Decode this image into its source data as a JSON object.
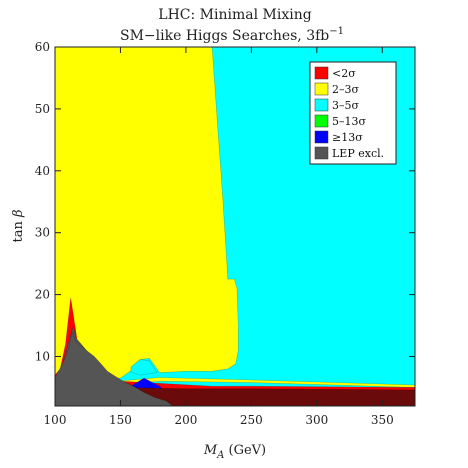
{
  "chart_data": {
    "type": "heatmap",
    "title_line1": "LHC: Minimal Mixing",
    "title_line2_main": "SM−like Higgs Searches, 3fb",
    "title_line2_sup": "−1",
    "xlabel_main": "M",
    "xlabel_sub": "A",
    "xlabel_unit": " (GeV)",
    "ylabel_main": "tan ",
    "ylabel_sym": "β",
    "xlim": [
      100,
      375
    ],
    "ylim": [
      2,
      60
    ],
    "x_ticks": [
      100,
      150,
      200,
      250,
      300,
      350
    ],
    "y_ticks": [
      10,
      20,
      30,
      40,
      50,
      60
    ],
    "legend_position": "top-right",
    "legend": [
      {
        "label": "<2σ",
        "color": "#ff0000"
      },
      {
        "label": "2–3σ",
        "color": "#ffff00"
      },
      {
        "label": "3–5σ",
        "color": "#00ffff"
      },
      {
        "label": "5–13σ",
        "color": "#00ff00"
      },
      {
        "label": "≥13σ",
        "color": "#0000ff"
      },
      {
        "label": "LEP excl.",
        "color": "#555555"
      }
    ],
    "regions": [
      {
        "name": "3-5 sigma",
        "color": "#00ffff",
        "polygon": [
          [
            100,
            2
          ],
          [
            375,
            2
          ],
          [
            375,
            60
          ],
          [
            100,
            60
          ]
        ]
      },
      {
        "name": "2-3 sigma",
        "color": "#ffff00",
        "polygon": [
          [
            100,
            60
          ],
          [
            220,
            60
          ],
          [
            224,
            48
          ],
          [
            228,
            36
          ],
          [
            231,
            26
          ],
          [
            232,
            22.5
          ],
          [
            237,
            22.5
          ],
          [
            239,
            21
          ],
          [
            240,
            15
          ],
          [
            240,
            11
          ],
          [
            238,
            8.8
          ],
          [
            232,
            8
          ],
          [
            220,
            7.6
          ],
          [
            200,
            7.6
          ],
          [
            180,
            7.4
          ],
          [
            172,
            9.7
          ],
          [
            165,
            9.5
          ],
          [
            160,
            8
          ],
          [
            150,
            6.5
          ],
          [
            130,
            6.5
          ],
          [
            100,
            7
          ]
        ]
      },
      {
        "name": "3-5 sigma dip",
        "color": "#00ffff",
        "polygon": [
          [
            158,
            8.3
          ],
          [
            165,
            9.5
          ],
          [
            172,
            9.3
          ],
          [
            178,
            7.4
          ],
          [
            165,
            7
          ],
          [
            158,
            7.5
          ]
        ]
      },
      {
        "name": "yellow strip",
        "color": "#ffff00",
        "polygon": [
          [
            125,
            5
          ],
          [
            180,
            6
          ],
          [
            250,
            5.8
          ],
          [
            375,
            5
          ],
          [
            375,
            5.4
          ],
          [
            250,
            6.2
          ],
          [
            180,
            6.6
          ],
          [
            125,
            5.6
          ]
        ]
      },
      {
        "name": "<2 sigma",
        "color": "#ff0000",
        "polygon": [
          [
            100,
            2
          ],
          [
            100,
            7
          ],
          [
            104,
            8
          ],
          [
            108,
            12
          ],
          [
            112,
            19.5
          ],
          [
            116,
            14
          ],
          [
            118,
            11
          ],
          [
            122,
            9
          ],
          [
            128,
            7
          ],
          [
            150,
            6
          ],
          [
            220,
            5.2
          ],
          [
            250,
            5.2
          ],
          [
            375,
            5
          ],
          [
            375,
            2
          ]
        ]
      },
      {
        "name": "LEP excl. low-x",
        "color": "#555555",
        "polygon": [
          [
            100,
            2
          ],
          [
            100,
            6
          ],
          [
            106,
            9
          ],
          [
            110,
            12
          ],
          [
            114,
            15
          ],
          [
            116,
            13
          ],
          [
            120,
            12
          ],
          [
            124,
            11
          ],
          [
            128,
            10
          ],
          [
            132,
            9
          ],
          [
            136,
            8
          ],
          [
            142,
            7
          ],
          [
            150,
            6.2
          ],
          [
            158,
            5.4
          ],
          [
            165,
            4.6
          ],
          [
            175,
            3.6
          ],
          [
            185,
            3
          ],
          [
            190,
            2
          ]
        ]
      },
      {
        "name": "LEP excl. green",
        "color": "#00ff00",
        "polygon": [
          [
            106,
            2
          ],
          [
            106,
            3.2
          ],
          [
            130,
            3.4
          ],
          [
            150,
            3.2
          ],
          [
            165,
            2.6
          ],
          [
            175,
            2
          ]
        ]
      },
      {
        "name": "LEP excl. blue",
        "color": "#0000ff",
        "polygon": [
          [
            150,
            2
          ],
          [
            152,
            3.6
          ],
          [
            158,
            5.2
          ],
          [
            168,
            6.5
          ],
          [
            180,
            5.2
          ],
          [
            190,
            3
          ],
          [
            200,
            2.4
          ],
          [
            205,
            2
          ]
        ]
      },
      {
        "name": "dark band",
        "color": "#6b0a0a",
        "polygon": [
          [
            100,
            2
          ],
          [
            375,
            2
          ],
          [
            375,
            4.6
          ],
          [
            250,
            4.8
          ],
          [
            200,
            4.8
          ],
          [
            150,
            5
          ],
          [
            120,
            5.6
          ],
          [
            100,
            6
          ]
        ]
      },
      {
        "name": "LEP excl. overlay",
        "color": "#555555",
        "polygon": [
          [
            100,
            2
          ],
          [
            100,
            6.6
          ],
          [
            105,
            8.5
          ],
          [
            110,
            11
          ],
          [
            113,
            14
          ],
          [
            116,
            12.5
          ],
          [
            122,
            11.3
          ],
          [
            130,
            10
          ],
          [
            136,
            8.6
          ],
          [
            140,
            7.6
          ],
          [
            146,
            6.8
          ],
          [
            152,
            6
          ],
          [
            160,
            5.2
          ],
          [
            168,
            4.2
          ],
          [
            176,
            3.4
          ],
          [
            185,
            2.8
          ],
          [
            190,
            2
          ]
        ]
      }
    ]
  }
}
